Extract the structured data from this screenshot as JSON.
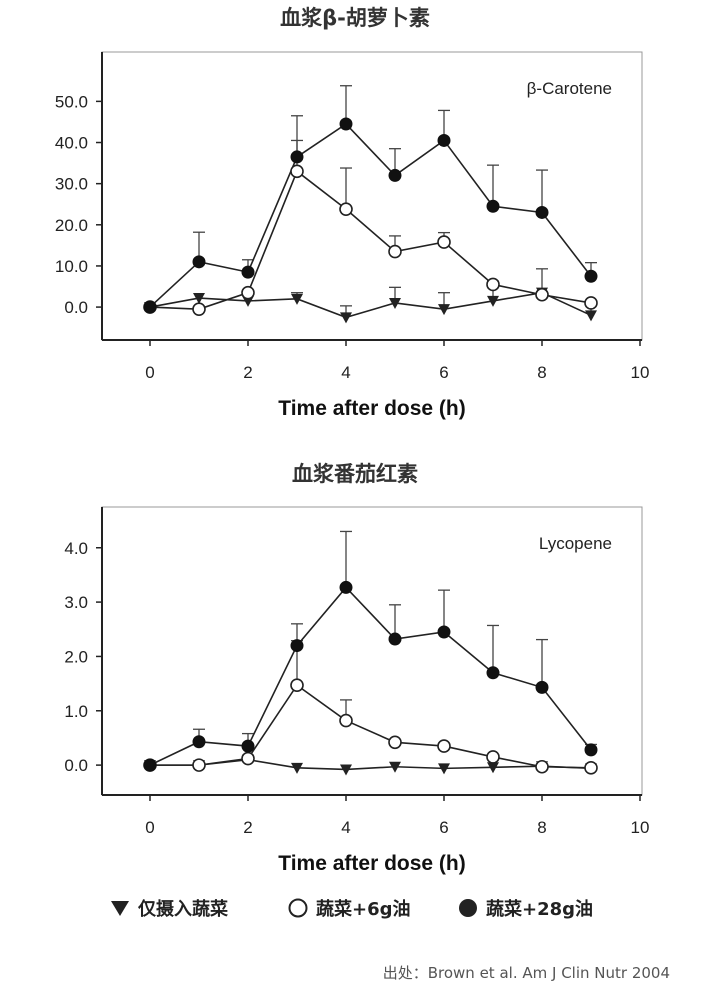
{
  "chart_data": [
    {
      "type": "line",
      "title": "血浆β-胡萝卜素",
      "annotation": "β-Carotene",
      "xlabel": "Time after dose (h)",
      "ylabel": "",
      "xlim": [
        0,
        10
      ],
      "ylim": [
        -8,
        62
      ],
      "xticks": [
        "0",
        "2",
        "4",
        "6",
        "8",
        "10"
      ],
      "yticks": [
        "0.0",
        "10.0",
        "20.0",
        "30.0",
        "40.0",
        "50.0"
      ],
      "grid": false,
      "series": [
        {
          "name": "仅摄入蔬菜",
          "marker": "triangle-down",
          "x": [
            0,
            1,
            2,
            3,
            4,
            5,
            6,
            7,
            8,
            9
          ],
          "y": [
            0,
            2.2,
            1.5,
            2.0,
            -2.5,
            1.0,
            -0.5,
            1.5,
            3.5,
            -2.0
          ],
          "err": [
            0,
            0,
            0,
            1.5,
            2.8,
            3.8,
            4.0,
            4.8,
            5.8,
            2.5
          ]
        },
        {
          "name": "蔬菜+6g油",
          "marker": "open-circle",
          "x": [
            0,
            1,
            2,
            3,
            4,
            5,
            6,
            7,
            8,
            9
          ],
          "y": [
            0,
            -0.5,
            3.5,
            33.0,
            23.8,
            13.5,
            15.8,
            5.5,
            3.0,
            1.0
          ],
          "err": [
            0,
            0,
            0,
            13.5,
            10.0,
            3.8,
            2.3,
            0,
            0,
            0
          ]
        },
        {
          "name": "蔬菜+28g油",
          "marker": "filled-circle",
          "x": [
            0,
            1,
            2,
            3,
            4,
            5,
            6,
            7,
            8,
            9
          ],
          "y": [
            0,
            11.0,
            8.5,
            36.5,
            44.5,
            32.0,
            40.5,
            24.5,
            23.0,
            7.5
          ],
          "err": [
            0,
            7.2,
            3.0,
            4.0,
            9.3,
            6.5,
            7.3,
            10.0,
            10.3,
            3.3
          ]
        }
      ]
    },
    {
      "type": "line",
      "title": "血浆番茄红素",
      "annotation": "Lycopene",
      "xlabel": "Time after dose (h)",
      "ylabel": "",
      "xlim": [
        0,
        10
      ],
      "ylim": [
        -0.55,
        4.75
      ],
      "xticks": [
        "0",
        "2",
        "4",
        "6",
        "8",
        "10"
      ],
      "yticks": [
        "0.0",
        "1.0",
        "2.0",
        "3.0",
        "4.0"
      ],
      "grid": false,
      "series": [
        {
          "name": "仅摄入蔬菜",
          "marker": "triangle-down",
          "x": [
            0,
            1,
            2,
            3,
            4,
            5,
            6,
            7,
            8,
            9
          ],
          "y": [
            0,
            0,
            0.1,
            -0.05,
            -0.08,
            -0.03,
            -0.06,
            -0.04,
            -0.02,
            -0.06
          ],
          "err": [
            0,
            0,
            0,
            0,
            0,
            0,
            0,
            0,
            0,
            0
          ]
        },
        {
          "name": "蔬菜+6g油",
          "marker": "open-circle",
          "x": [
            0,
            1,
            2,
            3,
            4,
            5,
            6,
            7,
            8,
            9
          ],
          "y": [
            0,
            0,
            0.12,
            1.47,
            0.82,
            0.42,
            0.35,
            0.15,
            -0.03,
            -0.05
          ],
          "err": [
            0,
            0,
            0,
            0.82,
            0.38,
            0,
            0,
            0,
            0,
            0
          ]
        },
        {
          "name": "蔬菜+28g油",
          "marker": "filled-circle",
          "x": [
            0,
            1,
            2,
            3,
            4,
            5,
            6,
            7,
            8,
            9
          ],
          "y": [
            0,
            0.43,
            0.35,
            2.2,
            3.27,
            2.32,
            2.45,
            1.7,
            1.43,
            0.28
          ],
          "err": [
            0,
            0.23,
            0.23,
            0.4,
            1.03,
            0.63,
            0.77,
            0.87,
            0.88,
            0.1
          ]
        }
      ]
    }
  ],
  "legend": {
    "placement": "bottom",
    "items": [
      {
        "symbol": "triangle-down",
        "label": "仅摄入蔬菜"
      },
      {
        "symbol": "open-circle",
        "label": "蔬菜+6g油"
      },
      {
        "symbol": "filled-circle",
        "label": "蔬菜+28g油"
      }
    ]
  },
  "source": "出处：Brown et al. Am J Clin Nutr 2004"
}
